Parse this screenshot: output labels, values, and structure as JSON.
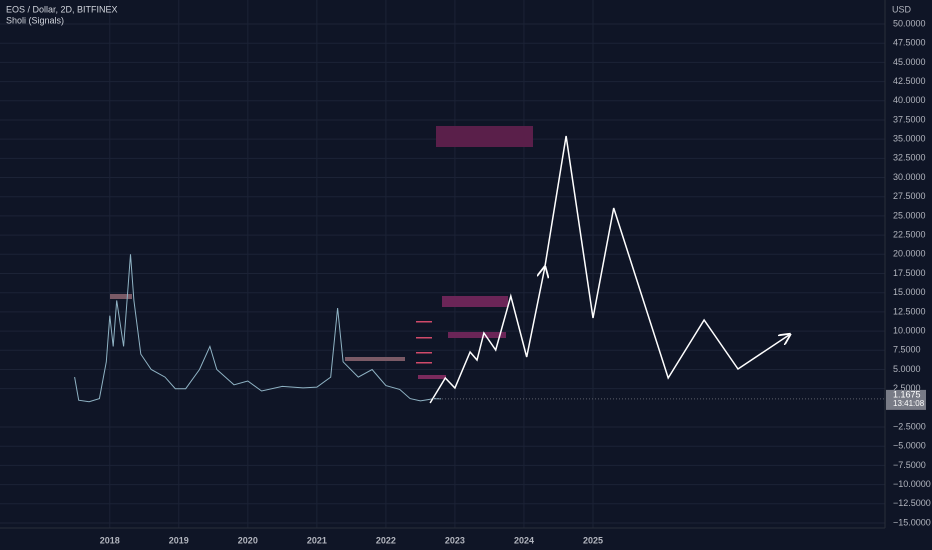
{
  "chart_data": {
    "type": "line",
    "title": "EOS / Dollar, 2D, BITFINEX",
    "subtitle": "Sholi (Signals)",
    "y_axis_label": "USD",
    "last_price": 1.1675,
    "countdown": "13:41:08",
    "xlim": [
      2016.41,
      2029.23
    ],
    "ylim": [
      -15,
      50
    ],
    "xticks": [
      2018,
      2019,
      2020,
      2021,
      2022,
      2023,
      2024,
      2025
    ],
    "yticks": [
      {
        "value": -15,
        "label": "−15.0000"
      },
      {
        "value": -12.5,
        "label": "−12.5000"
      },
      {
        "value": -10,
        "label": "−10.0000"
      },
      {
        "value": -7.5,
        "label": "−7.5000"
      },
      {
        "value": -5,
        "label": "−5.0000"
      },
      {
        "value": -2.5,
        "label": "−2.5000"
      },
      {
        "value": 2.5,
        "label": "2.5000"
      },
      {
        "value": 5,
        "label": "5.0000"
      },
      {
        "value": 7.5,
        "label": "7.5000"
      },
      {
        "value": 10,
        "label": "10.0000"
      },
      {
        "value": 12.5,
        "label": "12.5000"
      },
      {
        "value": 15,
        "label": "15.0000"
      },
      {
        "value": 17.5,
        "label": "17.5000"
      },
      {
        "value": 20,
        "label": "20.0000"
      },
      {
        "value": 22.5,
        "label": "22.5000"
      },
      {
        "value": 25,
        "label": "25.0000"
      },
      {
        "value": 27.5,
        "label": "27.5000"
      },
      {
        "value": 30,
        "label": "30.0000"
      },
      {
        "value": 32.5,
        "label": "32.5000"
      },
      {
        "value": 35,
        "label": "35.0000"
      },
      {
        "value": 37.5,
        "label": "37.5000"
      },
      {
        "value": 40,
        "label": "40.0000"
      },
      {
        "value": 42.5,
        "label": "42.5000"
      },
      {
        "value": 45,
        "label": "45.0000"
      },
      {
        "value": 47.5,
        "label": "47.5000"
      },
      {
        "value": 50,
        "label": "50.0000"
      }
    ],
    "grid": true,
    "series": [
      {
        "color": "#8fb3c4",
        "x": [
          2017.49,
          2017.55,
          2017.7,
          2017.85,
          2017.95,
          2018.0,
          2018.05,
          2018.1,
          2018.2,
          2018.3,
          2018.35,
          2018.45,
          2018.6,
          2018.8,
          2018.95,
          2019.1,
          2019.3,
          2019.45,
          2019.55,
          2019.8,
          2020.0,
          2020.2,
          2020.5,
          2020.8,
          2021.0,
          2021.2,
          2021.3,
          2021.38,
          2021.6,
          2021.8,
          2022.0,
          2022.2,
          2022.35,
          2022.5,
          2022.7,
          2022.8
        ],
        "values": [
          4,
          1,
          0.8,
          1.2,
          6,
          12,
          8,
          14,
          8,
          20,
          14,
          7,
          5,
          4,
          2.5,
          2.5,
          5,
          8,
          5,
          3,
          3.5,
          2.2,
          2.8,
          2.6,
          2.7,
          4,
          13,
          6,
          4,
          5,
          2.9,
          2.4,
          1.2,
          0.9,
          1.2,
          1.17
        ]
      },
      {
        "color": "#ffffff",
        "x": [
          2022.64,
          2022.86,
          2023.0,
          2023.22,
          2023.32,
          2023.42,
          2023.59,
          2023.81,
          2024.04,
          2024.3
        ],
        "values": [
          0.63,
          3.89,
          2.59,
          7.27,
          6.23,
          9.75,
          7.53,
          14.56,
          6.62,
          18.22
        ]
      },
      {
        "color": "#ffffff",
        "x": [
          2024.3,
          2024.61,
          2025.0,
          2025.3,
          2026.09,
          2026.61,
          2027.1,
          2027.84
        ],
        "values": [
          18.22,
          35.41,
          11.7,
          26.03,
          3.89,
          11.44,
          5.06,
          9.49
        ]
      }
    ]
  }
}
